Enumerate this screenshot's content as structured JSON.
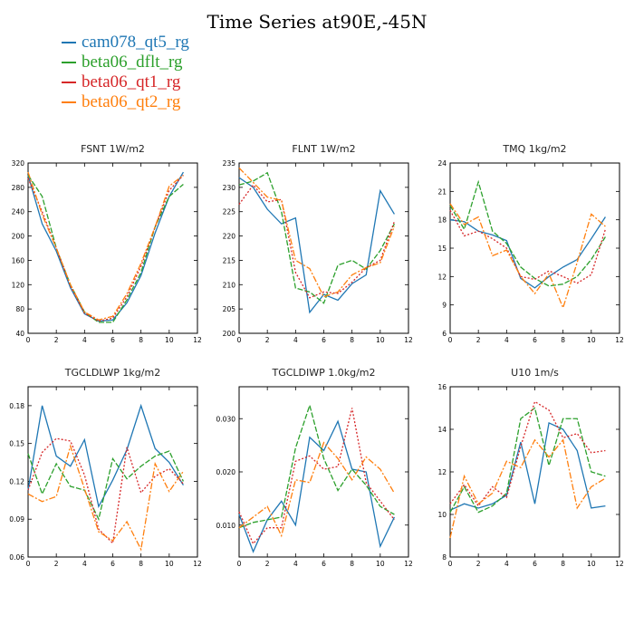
{
  "title": "Time Series at90E,-45N",
  "legend": [
    {
      "name": "cam078_qt5_rg",
      "color": "#1f77b4"
    },
    {
      "name": "beta06_dflt_rg",
      "color": "#2ca02c"
    },
    {
      "name": "beta06_qt1_rg",
      "color": "#d62728"
    },
    {
      "name": "beta06_qt2_rg",
      "color": "#ff7f0e"
    }
  ],
  "chart_data": [
    {
      "type": "line",
      "title": "FSNT  1W/m2",
      "x": [
        0,
        1,
        2,
        3,
        4,
        5,
        6,
        7,
        8,
        9,
        10,
        11
      ],
      "xlim": [
        0,
        12
      ],
      "xticks": [
        "0",
        "2",
        "4",
        "6",
        "8",
        "10",
        "12"
      ],
      "ylim": [
        40,
        320
      ],
      "yticks": [
        "40",
        "80",
        "120",
        "160",
        "200",
        "240",
        "280",
        "320"
      ],
      "series": [
        {
          "name": "cam078_qt5_rg",
          "values": [
            300,
            220,
            175,
            115,
            72,
            60,
            62,
            90,
            135,
            205,
            265,
            305
          ]
        },
        {
          "name": "beta06_dflt_rg",
          "values": [
            300,
            265,
            180,
            120,
            75,
            58,
            58,
            95,
            140,
            215,
            265,
            285
          ]
        },
        {
          "name": "beta06_qt1_rg",
          "values": [
            295,
            240,
            180,
            118,
            73,
            60,
            65,
            100,
            150,
            215,
            275,
            300
          ]
        },
        {
          "name": "beta06_qt2_rg",
          "values": [
            305,
            235,
            180,
            120,
            75,
            62,
            68,
            105,
            155,
            215,
            282,
            300
          ]
        }
      ]
    },
    {
      "type": "line",
      "title": "FLNT  1W/m2",
      "x": [
        0,
        1,
        2,
        3,
        4,
        5,
        6,
        7,
        8,
        9,
        10,
        11
      ],
      "xlim": [
        0,
        12
      ],
      "xticks": [
        "0",
        "2",
        "4",
        "6",
        "8",
        "10",
        "12"
      ],
      "ylim": [
        200,
        235
      ],
      "yticks": [
        "200",
        "205",
        "210",
        "215",
        "220",
        "225",
        "230",
        "235"
      ],
      "series": [
        {
          "name": "cam078_qt5_rg",
          "values": [
            232,
            230,
            225.5,
            222.5,
            223.7,
            204.3,
            208,
            206.8,
            210.2,
            212,
            229.3,
            224.5
          ]
        },
        {
          "name": "beta06_dflt_rg",
          "values": [
            230.5,
            231.3,
            233,
            225,
            209.3,
            208.5,
            206.2,
            214,
            215,
            213.2,
            217,
            222.5
          ]
        },
        {
          "name": "beta06_qt1_rg",
          "values": [
            226.5,
            230.5,
            227,
            227.5,
            212.5,
            207.3,
            208.5,
            208.2,
            210.5,
            213.5,
            215,
            223
          ]
        },
        {
          "name": "beta06_qt2_rg",
          "values": [
            234,
            231,
            228,
            227.3,
            215,
            213.3,
            207.5,
            208.5,
            212,
            213.5,
            214.5,
            222
          ]
        }
      ]
    },
    {
      "type": "line",
      "title": "TMQ  1kg/m2",
      "x": [
        0,
        1,
        2,
        3,
        4,
        5,
        6,
        7,
        8,
        9,
        10,
        11
      ],
      "xlim": [
        0,
        12
      ],
      "xticks": [
        "0",
        "2",
        "4",
        "6",
        "8",
        "10",
        "12"
      ],
      "ylim": [
        6,
        24
      ],
      "yticks": [
        "6",
        "9",
        "12",
        "15",
        "18",
        "21",
        "24"
      ],
      "series": [
        {
          "name": "cam078_qt5_rg",
          "values": [
            18,
            17.8,
            16.8,
            16.4,
            15.8,
            11.8,
            10.8,
            12,
            13,
            13.8,
            16,
            18.3
          ]
        },
        {
          "name": "beta06_dflt_rg",
          "values": [
            19.5,
            17,
            22,
            16.8,
            15.5,
            13,
            11.8,
            11,
            11.2,
            12,
            13.8,
            16.2
          ]
        },
        {
          "name": "beta06_qt1_rg",
          "values": [
            19,
            16.3,
            16.8,
            16,
            15,
            12,
            11.7,
            12.6,
            12,
            11.3,
            12.2,
            17
          ]
        },
        {
          "name": "beta06_qt2_rg",
          "values": [
            19.7,
            17.5,
            18.3,
            14.2,
            14.8,
            12,
            10.2,
            12.3,
            8.7,
            13.5,
            18.6,
            17.3
          ]
        }
      ]
    },
    {
      "type": "line",
      "title": "TGCLDLWP  1kg/m2",
      "x": [
        0,
        1,
        2,
        3,
        4,
        5,
        6,
        7,
        8,
        9,
        10,
        11
      ],
      "xlim": [
        0,
        12
      ],
      "xticks": [
        "0",
        "2",
        "4",
        "6",
        "8",
        "10",
        "12"
      ],
      "ylim": [
        0.06,
        0.195
      ],
      "yticks": [
        "0.06",
        "0.09",
        "0.12",
        "0.15",
        "0.18"
      ],
      "series": [
        {
          "name": "cam078_qt5_rg",
          "values": [
            0.113,
            0.18,
            0.14,
            0.132,
            0.153,
            0.1,
            0.121,
            0.145,
            0.18,
            0.146,
            0.135,
            0.117
          ]
        },
        {
          "name": "beta06_dflt_rg",
          "values": [
            0.142,
            0.11,
            0.134,
            0.116,
            0.113,
            0.09,
            0.138,
            0.122,
            0.132,
            0.14,
            0.144,
            0.12
          ]
        },
        {
          "name": "beta06_qt1_rg",
          "values": [
            0.113,
            0.143,
            0.154,
            0.152,
            0.125,
            0.082,
            0.071,
            0.147,
            0.111,
            0.124,
            0.13,
            0.118
          ]
        },
        {
          "name": "beta06_qt2_rg",
          "values": [
            0.11,
            0.104,
            0.108,
            0.148,
            0.114,
            0.08,
            0.073,
            0.088,
            0.066,
            0.134,
            0.112,
            0.128
          ]
        }
      ]
    },
    {
      "type": "line",
      "title": "TGCLDIWP  1.0kg/m2",
      "x": [
        0,
        1,
        2,
        3,
        4,
        5,
        6,
        7,
        8,
        9,
        10,
        11
      ],
      "xlim": [
        0,
        12
      ],
      "xticks": [
        "0",
        "2",
        "4",
        "6",
        "8",
        "10",
        "12"
      ],
      "ylim": [
        0.004,
        0.036
      ],
      "yticks": [
        "0.010",
        "0.020",
        "0.030"
      ],
      "series": [
        {
          "name": "cam078_qt5_rg",
          "values": [
            0.012,
            0.005,
            0.011,
            0.0145,
            0.01,
            0.0265,
            0.024,
            0.0295,
            0.0205,
            0.02,
            0.006,
            0.0115
          ]
        },
        {
          "name": "beta06_dflt_rg",
          "values": [
            0.0095,
            0.0105,
            0.011,
            0.0115,
            0.0245,
            0.0325,
            0.0225,
            0.0165,
            0.0205,
            0.0175,
            0.0135,
            0.012
          ]
        },
        {
          "name": "beta06_qt1_rg",
          "values": [
            0.0125,
            0.0065,
            0.0095,
            0.0095,
            0.022,
            0.023,
            0.0205,
            0.021,
            0.032,
            0.018,
            0.0145,
            0.011
          ]
        },
        {
          "name": "beta06_qt2_rg",
          "values": [
            0.0095,
            0.0115,
            0.0135,
            0.008,
            0.0185,
            0.018,
            0.0255,
            0.0225,
            0.0185,
            0.0228,
            0.0205,
            0.016
          ]
        }
      ]
    },
    {
      "type": "line",
      "title": "U10  1m/s",
      "x": [
        0,
        1,
        2,
        3,
        4,
        5,
        6,
        7,
        8,
        9,
        10,
        11
      ],
      "xlim": [
        0,
        12
      ],
      "xticks": [
        "0",
        "2",
        "4",
        "6",
        "8",
        "10",
        "12"
      ],
      "ylim": [
        8,
        16
      ],
      "yticks": [
        "8",
        "10",
        "12",
        "14",
        "16"
      ],
      "series": [
        {
          "name": "cam078_qt5_rg",
          "values": [
            10.2,
            10.5,
            10.3,
            10.5,
            10.9,
            13.4,
            10.5,
            14.3,
            14,
            13,
            10.3,
            10.4
          ]
        },
        {
          "name": "beta06_dflt_rg",
          "values": [
            10.1,
            11.3,
            10.1,
            10.4,
            11,
            14.5,
            15,
            12.3,
            14.5,
            14.5,
            12,
            11.8
          ]
        },
        {
          "name": "beta06_qt1_rg",
          "values": [
            10.5,
            11.4,
            10.4,
            11.3,
            10.8,
            13.2,
            15.3,
            14.9,
            13.6,
            13.8,
            12.9,
            13
          ]
        },
        {
          "name": "beta06_qt2_rg",
          "values": [
            8.9,
            11.8,
            10.5,
            11,
            12.5,
            12.2,
            13.5,
            12.7,
            13.5,
            10.3,
            11.3,
            11.7
          ]
        }
      ]
    }
  ]
}
